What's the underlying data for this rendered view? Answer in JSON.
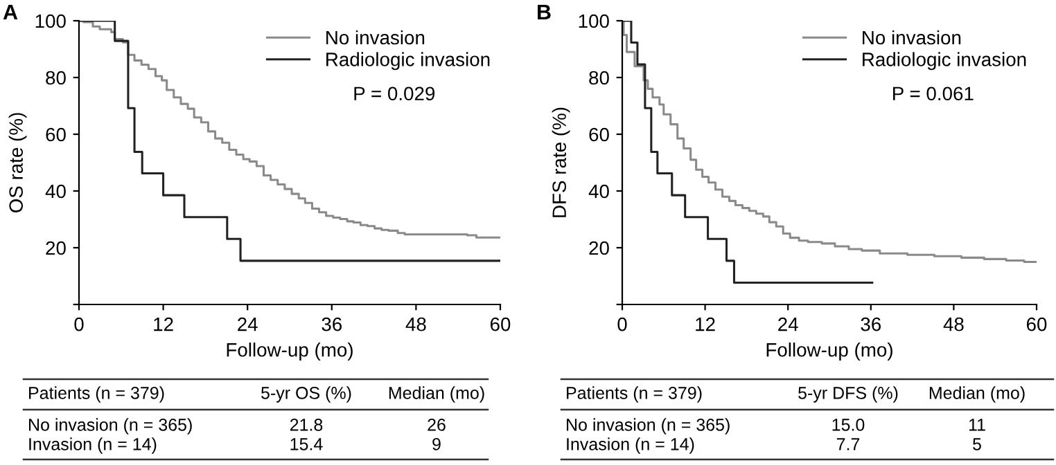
{
  "chart_data": [
    {
      "type": "step",
      "title": "A",
      "xlabel": "Follow-up (mo)",
      "ylabel": "OS rate (%)",
      "xlim": [
        0,
        60
      ],
      "xticks": [
        0,
        12,
        24,
        36,
        48,
        60
      ],
      "ylim": [
        0,
        100
      ],
      "yticks": [
        {
          "value": 0,
          "label": null
        },
        20,
        40,
        60,
        80,
        100
      ],
      "grid": false,
      "legend": "top right",
      "series": [
        {
          "name": "No invasion",
          "color": "#8a8a8a",
          "x": [
            0,
            0.66,
            1.97,
            2.96,
            4.6,
            5.1,
            6.25,
            7.0,
            7.9,
            8.9,
            9.9,
            10.9,
            11.8,
            12.5,
            13.5,
            14.5,
            15.5,
            16.4,
            17.4,
            18.4,
            19.4,
            20.4,
            21.4,
            22.4,
            23.4,
            24.3,
            25.3,
            26.3,
            27.3,
            28.3,
            29.3,
            30.3,
            31.3,
            32.2,
            33.2,
            34.2,
            35.2,
            36.2,
            37.2,
            38.2,
            39.1,
            40.1,
            41.1,
            42.1,
            43.1,
            44.1,
            45.4,
            46.4,
            47.4,
            55.3,
            56.6,
            60
          ],
          "values": [
            100,
            99.5,
            98,
            97,
            96,
            93.5,
            92.4,
            88,
            86,
            84.5,
            83,
            80.5,
            79,
            75.6,
            73,
            70.7,
            69,
            65.9,
            64.2,
            61,
            58.5,
            57,
            54.5,
            52.8,
            51.2,
            50.4,
            48.8,
            45.5,
            43.9,
            42.3,
            40.7,
            39,
            37.4,
            35.8,
            33.8,
            32.5,
            31.2,
            30.6,
            30.1,
            29.3,
            28.9,
            28,
            27.6,
            26.8,
            26.3,
            26,
            25.2,
            24.7,
            24.7,
            24.4,
            23.6,
            23.6
          ]
        },
        {
          "name": "Radiologic invasion",
          "color": "#222222",
          "x": [
            0,
            5.1,
            7.0,
            7.9,
            9.0,
            12.0,
            15.0,
            21.1,
            23.0,
            60
          ],
          "values": [
            100,
            92.9,
            69.2,
            53.8,
            46.2,
            38.5,
            30.8,
            23.1,
            15.4,
            15.4
          ]
        }
      ],
      "annotations": [
        "P = 0.029",
        "Patients (n = 379)",
        "5-yr OS (%)",
        "Median (mo)",
        "No invasion (n = 365)",
        "21.8",
        "26",
        "Invasion (n = 14)",
        "15.4",
        "9"
      ]
    },
    {
      "type": "step",
      "title": "B",
      "xlabel": "Follow-up (mo)",
      "ylabel": "DFS rate (%)",
      "xlim": [
        0,
        60
      ],
      "xticks": [
        0,
        12,
        24,
        36,
        48,
        60
      ],
      "ylim": [
        0,
        100
      ],
      "yticks": [
        {
          "value": 0,
          "label": null
        },
        20,
        40,
        60,
        80,
        100
      ],
      "grid": false,
      "legend": "top right",
      "series": [
        {
          "name": "No invasion",
          "color": "#8a8a8a",
          "x": [
            0,
            0.2,
            0.65,
            1.8,
            3.1,
            3.7,
            4.4,
            5.4,
            6.0,
            7.0,
            8.0,
            8.9,
            9.9,
            10.7,
            11.6,
            12.5,
            13.5,
            14.5,
            15.5,
            16.4,
            17.4,
            18.4,
            19.4,
            20.4,
            21.3,
            22.3,
            23.3,
            24.3,
            25.6,
            26.9,
            28.9,
            30.8,
            32.8,
            34.7,
            37.3,
            41.3,
            45.2,
            49.1,
            52.4,
            55.6,
            58.2,
            60
          ],
          "values": [
            100,
            95,
            89,
            84,
            79,
            76,
            73,
            70.5,
            67,
            63.5,
            58.5,
            55,
            51,
            47.5,
            45,
            43,
            40.5,
            38,
            36.5,
            35,
            34,
            33,
            32,
            31,
            29,
            27.5,
            25,
            23.5,
            22.5,
            22,
            21.5,
            20.5,
            19.5,
            19,
            18,
            17.5,
            17,
            16.5,
            16,
            15.5,
            15,
            15
          ]
        },
        {
          "name": "Radiologic invasion",
          "color": "#222222",
          "x": [
            0,
            1.3,
            2.2,
            3.3,
            4.2,
            5.1,
            7.2,
            9.1,
            12.4,
            15.1,
            16.2,
            36.2
          ],
          "values": [
            100,
            92.3,
            84.6,
            69.2,
            53.8,
            46.2,
            38.5,
            30.8,
            23.1,
            15.4,
            7.7,
            7.7
          ]
        }
      ],
      "annotations": [
        "P = 0.061",
        "Patients (n = 379)",
        "5-yr DFS (%)",
        "Median (mo)",
        "No invasion (n = 365)",
        "15.0",
        "11",
        "Invasion (n = 14)",
        "7.7",
        "5"
      ]
    }
  ]
}
